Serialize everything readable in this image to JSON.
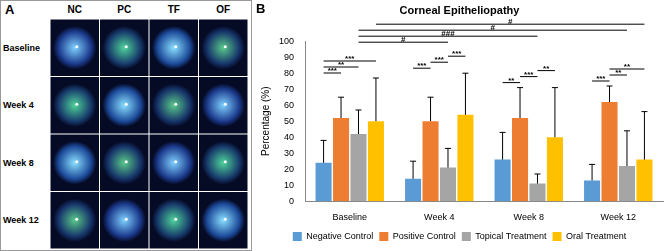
{
  "panels": {
    "a": {
      "label": "A",
      "columns": [
        "NC",
        "PC",
        "TF",
        "OF"
      ],
      "rows": [
        "Baseline",
        "Week 4",
        "Week 8",
        "Week 12"
      ]
    },
    "b": {
      "label": "B"
    }
  },
  "chart_data": {
    "type": "bar",
    "title": "Corneal Epitheliopathy",
    "y_label": "Percentage (%)",
    "categories": [
      "Baseline",
      "Week 4",
      "Week 8",
      "Week 12"
    ],
    "series": [
      {
        "name": "Negative Control",
        "color": "#5b9bd5",
        "values": [
          24,
          14,
          26,
          13
        ],
        "errors": [
          14,
          11,
          17,
          10
        ]
      },
      {
        "name": "Positive Control",
        "color": "#ed7d31",
        "values": [
          52,
          50,
          52,
          62
        ],
        "errors": [
          13,
          15,
          19,
          10
        ]
      },
      {
        "name": "Topical Treatment",
        "color": "#a5a5a5",
        "values": [
          42,
          21,
          11,
          22
        ],
        "errors": [
          15,
          12,
          6,
          22
        ]
      },
      {
        "name": "Oral Treatment",
        "color": "#ffc000",
        "values": [
          50,
          54,
          40,
          26
        ],
        "errors": [
          27,
          26,
          31,
          30
        ]
      }
    ],
    "ylim": [
      0,
      100
    ],
    "yticks": [
      0,
      10,
      20,
      30,
      40,
      50,
      60,
      70,
      80,
      90,
      100
    ],
    "grid": false,
    "legend": "bottom",
    "annotations": [
      {
        "text": "***",
        "from": [
          "Baseline",
          "Negative Control"
        ],
        "to": [
          "Baseline",
          "Positive Control"
        ]
      },
      {
        "text": "**",
        "from": [
          "Baseline",
          "Negative Control"
        ],
        "to": [
          "Baseline",
          "Topical Treatment"
        ]
      },
      {
        "text": "***",
        "from": [
          "Baseline",
          "Negative Control"
        ],
        "to": [
          "Baseline",
          "Oral Treatment"
        ]
      },
      {
        "text": "***",
        "from": [
          "Week 4",
          "Negative Control"
        ],
        "to": [
          "Week 4",
          "Positive Control"
        ]
      },
      {
        "text": "***",
        "from": [
          "Week 4",
          "Positive Control"
        ],
        "to": [
          "Week 4",
          "Topical Treatment"
        ]
      },
      {
        "text": "***",
        "from": [
          "Week 4",
          "Topical Treatment"
        ],
        "to": [
          "Week 4",
          "Oral Treatment"
        ]
      },
      {
        "text": "**",
        "from": [
          "Week 8",
          "Negative Control"
        ],
        "to": [
          "Week 8",
          "Positive Control"
        ]
      },
      {
        "text": "***",
        "from": [
          "Week 8",
          "Positive Control"
        ],
        "to": [
          "Week 8",
          "Topical Treatment"
        ]
      },
      {
        "text": "**",
        "from": [
          "Week 8",
          "Topical Treatment"
        ],
        "to": [
          "Week 8",
          "Oral Treatment"
        ]
      },
      {
        "text": "***",
        "from": [
          "Week 12",
          "Negative Control"
        ],
        "to": [
          "Week 12",
          "Positive Control"
        ]
      },
      {
        "text": "**",
        "from": [
          "Week 12",
          "Positive Control"
        ],
        "to": [
          "Week 12",
          "Topical Treatment"
        ]
      },
      {
        "text": "**",
        "from": [
          "Week 12",
          "Positive Control"
        ],
        "to": [
          "Week 12",
          "Oral Treatment"
        ]
      },
      {
        "text": "#",
        "from": [
          "Baseline",
          "Topical Treatment"
        ],
        "to": [
          "Week 4",
          "Topical Treatment"
        ]
      },
      {
        "text": "###",
        "from": [
          "Baseline",
          "Topical Treatment"
        ],
        "to": [
          "Week 8",
          "Topical Treatment"
        ]
      },
      {
        "text": "#",
        "from": [
          "Baseline",
          "Topical Treatment"
        ],
        "to": [
          "Week 12",
          "Topical Treatment"
        ]
      },
      {
        "text": "#",
        "from": [
          "Baseline",
          "Oral Treatment"
        ],
        "to": [
          "Week 12",
          "Oral Treatment"
        ]
      }
    ]
  }
}
